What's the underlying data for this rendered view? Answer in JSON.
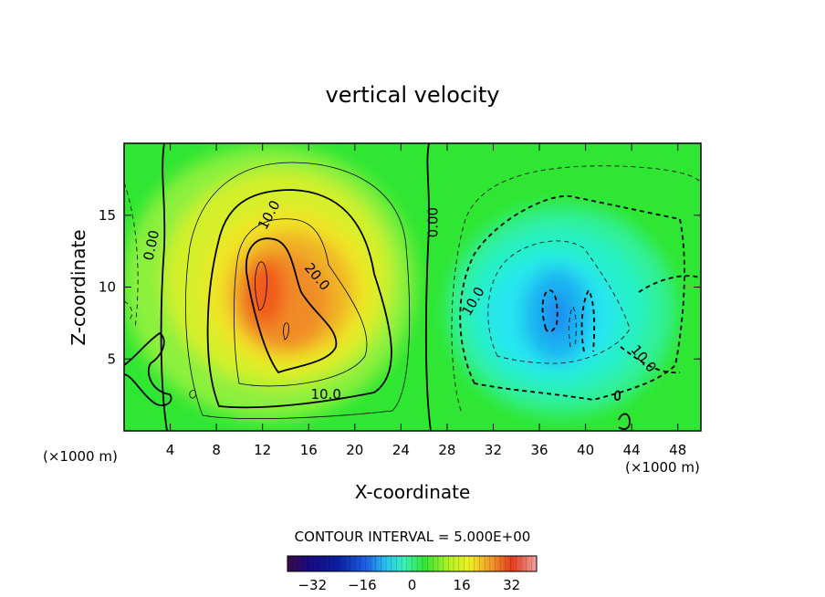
{
  "chart_data": {
    "type": "heatmap",
    "title": "vertical velocity",
    "xlabel": "X-coordinate",
    "ylabel": "Z-coordinate",
    "x_unit_left": "(×1000 m)",
    "x_unit_right": "(×1000 m)",
    "xlim": [
      0,
      50
    ],
    "ylim": [
      0,
      20
    ],
    "x_ticks": [
      4,
      8,
      12,
      16,
      20,
      24,
      28,
      32,
      36,
      40,
      44,
      48
    ],
    "y_ticks": [
      5,
      10,
      15
    ],
    "contour_interval_text": "CONTOUR INTERVAL = 5.000E+00",
    "contour_interval": 5,
    "colorbar": {
      "range": [
        -40,
        40
      ],
      "ticks": [
        -32,
        -16,
        0,
        16,
        32
      ],
      "tick_labels": [
        "−32",
        "−16",
        "0",
        "16",
        "32"
      ]
    },
    "contour_labels": [
      {
        "text": "10.0",
        "x": 12.6,
        "z": 15.0
      },
      {
        "text": "20.0",
        "x": 16.7,
        "z": 10.7
      },
      {
        "text": "10.0",
        "x": 17.5,
        "z": 2.5
      },
      {
        "text": "0.00",
        "x": 2.4,
        "z": 12.9
      },
      {
        "text": "0.00",
        "x": 26.8,
        "z": 14.5
      },
      {
        "text": "10.0",
        "x": 30.3,
        "z": 9.0
      },
      {
        "text": "10.0",
        "x": 45.0,
        "z": 5.0
      }
    ],
    "field_features": [
      {
        "name": "updraft core",
        "x": 13,
        "z": 9,
        "peak": 27
      },
      {
        "name": "downdraft core",
        "x": 38,
        "z": 8.5,
        "peak": -20
      }
    ]
  }
}
